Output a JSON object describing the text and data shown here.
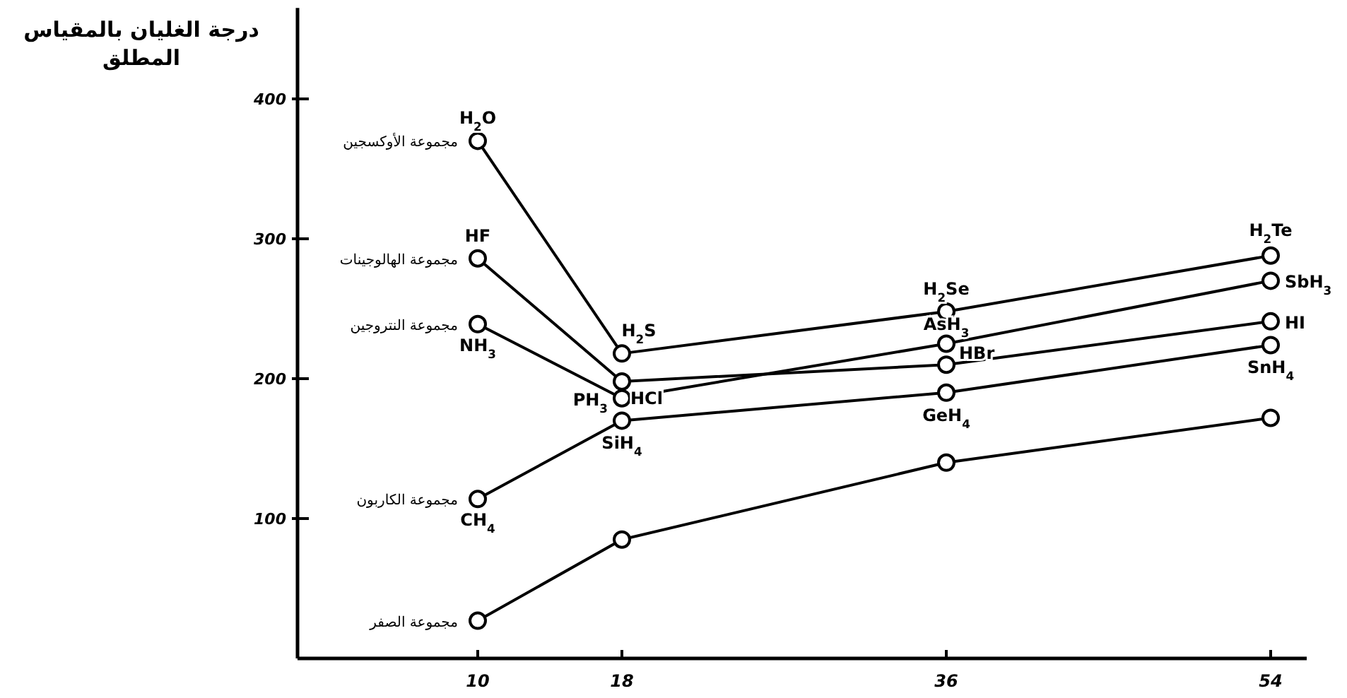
{
  "chart_data": {
    "type": "line",
    "ylabel": "درجة الغليان بالمقياس المطلق",
    "x": [
      10,
      18,
      36,
      54
    ],
    "xlim": [
      0,
      56
    ],
    "ylim": [
      0,
      465
    ],
    "xticks": [
      10,
      18,
      36,
      54
    ],
    "yticks": [
      100,
      200,
      300,
      400
    ],
    "marker": "circle",
    "line_style": "solid",
    "legend": false,
    "grid": false,
    "series": [
      {
        "name": "مجموعة الأوكسجين",
        "color": "#000000",
        "values": [
          370,
          218,
          248,
          288
        ]
      },
      {
        "name": "مجموعة الهالوجينات",
        "color": "#000000",
        "values": [
          286,
          198,
          210,
          241
        ]
      },
      {
        "name": "مجموعة النتروجين",
        "color": "#000000",
        "values": [
          239,
          186,
          225,
          270
        ]
      },
      {
        "name": "مجموعة الكاربون",
        "color": "#000000",
        "values": [
          114,
          170,
          190,
          224
        ]
      },
      {
        "name": "مجموعة الصفر",
        "color": "#000000",
        "values": [
          27,
          85,
          140,
          172
        ]
      }
    ],
    "annotations": [
      {
        "text": "H$_{2}$O",
        "x": 10,
        "y": 370
      },
      {
        "text": "HF",
        "x": 10,
        "y": 286
      },
      {
        "text": "NH$_{3}$",
        "x": 10,
        "y": 239
      },
      {
        "text": "CH$_{4}$",
        "x": 10,
        "y": 114
      },
      {
        "text": "H$_{2}$S",
        "x": 18,
        "y": 218
      },
      {
        "text": "HCl",
        "x": 18,
        "y": 198
      },
      {
        "text": "PH$_{3}$",
        "x": 18,
        "y": 186
      },
      {
        "text": "SiH$_{4}$",
        "x": 18,
        "y": 170
      },
      {
        "text": "H$_{2}$Se",
        "x": 36,
        "y": 248
      },
      {
        "text": "AsH$_{3}$",
        "x": 36,
        "y": 225
      },
      {
        "text": "HBr",
        "x": 36,
        "y": 210
      },
      {
        "text": "GeH$_{4}$",
        "x": 36,
        "y": 190
      },
      {
        "text": "H$_{2}$Te",
        "x": 54,
        "y": 288
      },
      {
        "text": "SbH$_{3}$",
        "x": 54,
        "y": 270
      },
      {
        "text": "HI",
        "x": 54,
        "y": 241
      },
      {
        "text": "SnH$_{4}$",
        "x": 54,
        "y": 224
      }
    ]
  }
}
